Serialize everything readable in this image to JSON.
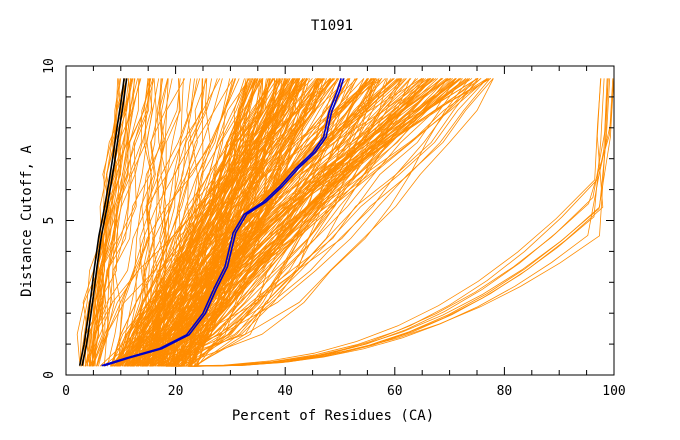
{
  "chart_data": {
    "type": "line",
    "title": "T1091",
    "xlabel": "Percent of Residues (CA)",
    "ylabel": "Distance Cutoff, A",
    "xlim": [
      0,
      100
    ],
    "ylim": [
      0,
      10
    ],
    "x_ticks": [
      "0",
      "20",
      "40",
      "60",
      "80",
      "100"
    ],
    "y_ticks": [
      "0",
      "5",
      "10"
    ],
    "grid": false,
    "legend": "none",
    "colors": {
      "background_series": "#ff8c00",
      "highlight_1": "#000000",
      "highlight_2": "#0000c8"
    },
    "highlight_series": [
      {
        "color": "#000000",
        "points": [
          [
            2.5,
            0.3
          ],
          [
            3.3,
            1
          ],
          [
            3.8,
            1.6
          ],
          [
            4.5,
            2.5
          ],
          [
            5.2,
            3.5
          ],
          [
            6,
            4.5
          ],
          [
            7,
            5.4
          ],
          [
            7.8,
            6.2
          ],
          [
            8.5,
            7
          ],
          [
            9.3,
            8
          ],
          [
            10.1,
            8.9
          ],
          [
            10.6,
            9.6
          ]
        ]
      },
      {
        "color": "#0000c8",
        "points": [
          [
            6.5,
            0.3
          ],
          [
            11,
            0.55
          ],
          [
            17,
            0.85
          ],
          [
            22,
            1.3
          ],
          [
            25,
            2
          ],
          [
            27,
            2.8
          ],
          [
            29,
            3.5
          ],
          [
            30.5,
            4.6
          ],
          [
            32.5,
            5.2
          ],
          [
            36,
            5.6
          ],
          [
            39,
            6.1
          ],
          [
            42,
            6.7
          ],
          [
            45,
            7.2
          ],
          [
            47,
            7.7
          ],
          [
            48,
            8.5
          ],
          [
            49.5,
            9.2
          ],
          [
            50.2,
            9.6
          ]
        ]
      }
    ],
    "background_groups": [
      {
        "count": 30,
        "start_x": [
          2.5,
          6
        ],
        "end_x": [
          9,
          17
        ]
      },
      {
        "count": 70,
        "start_x": [
          3,
          20
        ],
        "end_x": [
          13,
          50
        ]
      },
      {
        "count": 220,
        "start_x": [
          8,
          24
        ],
        "end_x": [
          33,
          78
        ]
      },
      {
        "count": 5,
        "start_x": [
          14,
          22
        ],
        "end_x": [
          62,
          80
        ]
      },
      {
        "count": 10,
        "start_x": [
          18,
          24
        ],
        "end_x": [
          97.5,
          100
        ]
      }
    ]
  }
}
